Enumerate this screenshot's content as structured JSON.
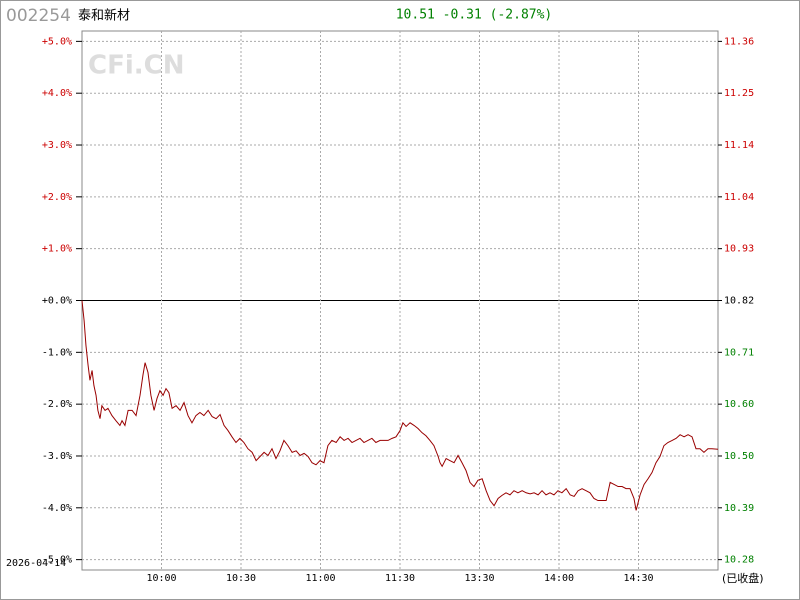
{
  "chart_data": {
    "type": "line",
    "code": "002254",
    "name": "泰和新材",
    "quote": "10.51 -0.31 (-2.87%)",
    "date": "2026-04-14",
    "status": "(已收盘)",
    "watermark": "CFi.CN",
    "color": "#990000",
    "up_color": "#cc0000",
    "down_color": "#008000",
    "grid": true,
    "xlim": [
      0,
      240
    ],
    "xticks": [
      {
        "value": 30,
        "label": "10:00"
      },
      {
        "value": 60,
        "label": "10:30"
      },
      {
        "value": 90,
        "label": "11:00"
      },
      {
        "value": 120,
        "label": "11:30"
      },
      {
        "value": 150,
        "label": "13:30"
      },
      {
        "value": 180,
        "label": "14:00"
      },
      {
        "value": 210,
        "label": "14:30"
      }
    ],
    "ylim": [
      -5.2,
      5.2
    ],
    "yticks": [
      {
        "value": 5,
        "label": "+5.0%"
      },
      {
        "value": 4,
        "label": "+4.0%"
      },
      {
        "value": 3,
        "label": "+3.0%"
      },
      {
        "value": 2,
        "label": "+2.0%"
      },
      {
        "value": 1,
        "label": "+1.0%"
      },
      {
        "value": 0,
        "label": "+0.0%"
      },
      {
        "value": -1,
        "label": "-1.0%"
      },
      {
        "value": -2,
        "label": "-2.0%"
      },
      {
        "value": -3,
        "label": "-3.0%"
      },
      {
        "value": -4,
        "label": "-4.0%"
      },
      {
        "value": -5,
        "label": "-5.0%"
      }
    ],
    "y2lim": [
      10.25736,
      11.38264
    ],
    "y2ticks": [
      {
        "value": 11.361,
        "label": "11.36"
      },
      {
        "value": 11.2528,
        "label": "11.25"
      },
      {
        "value": 11.1446,
        "label": "11.14"
      },
      {
        "value": 11.0364,
        "label": "11.04"
      },
      {
        "value": 10.9282,
        "label": "10.93"
      },
      {
        "value": 10.82,
        "label": "10.82"
      },
      {
        "value": 10.7118,
        "label": "10.71"
      },
      {
        "value": 10.6036,
        "label": "10.60"
      },
      {
        "value": 10.4954,
        "label": "10.50"
      },
      {
        "value": 10.3872,
        "label": "10.39"
      },
      {
        "value": 10.279,
        "label": "10.28"
      }
    ],
    "x": [
      0,
      0.8,
      1.5,
      2.3,
      3,
      3.8,
      4.5,
      5.3,
      6,
      6.8,
      7.5,
      8.7,
      9.8,
      11.3,
      12.8,
      14.3,
      15.1,
      16.2,
      17.4,
      18.9,
      20.4,
      21.9,
      23,
      23.8,
      24.9,
      26,
      27.2,
      28.3,
      29.4,
      30.6,
      31.7,
      32.8,
      34,
      35.5,
      37,
      38.5,
      40,
      41.5,
      43,
      44.5,
      46,
      47.6,
      49.1,
      50.6,
      52.1,
      53.6,
      55.1,
      56.6,
      58.1,
      59.6,
      61.1,
      62.6,
      64.2,
      65.7,
      67.2,
      68.7,
      70.2,
      71.7,
      73.2,
      74.7,
      76.2,
      77.7,
      79.3,
      80.8,
      82.3,
      83.8,
      85.3,
      86.8,
      88.3,
      89.8,
      91.3,
      92.8,
      94.3,
      95.9,
      97.4,
      98.9,
      100.4,
      101.9,
      103.4,
      104.9,
      106.4,
      107.9,
      109.4,
      110.9,
      112.5,
      115.5,
      117,
      118.5,
      120,
      121.1,
      122.3,
      123.8,
      125.3,
      126.8,
      128.3,
      129.8,
      131.3,
      132.8,
      134.4,
      135.1,
      135.9,
      137.4,
      138.9,
      140.4,
      141.9,
      143.4,
      144.9,
      146.4,
      147.9,
      149.4,
      151,
      152.5,
      154,
      155.5,
      157,
      158.5,
      160,
      161.5,
      163,
      164.5,
      166.1,
      167.6,
      169.1,
      170.6,
      172.1,
      173.6,
      175.1,
      176.6,
      178.1,
      179.6,
      181.1,
      182.7,
      184.2,
      185.7,
      187.2,
      188.7,
      190.2,
      191.7,
      193.2,
      194.7,
      197.8,
      199.3,
      200.8,
      202.3,
      203.8,
      205.3,
      206.8,
      208.3,
      209.1,
      210.6,
      212.1,
      213.6,
      215.1,
      216.6,
      218.1,
      219.6,
      221.1,
      222.7,
      224.2,
      225.7,
      227.2,
      228.7,
      230.2,
      231.7,
      233.2,
      234.7,
      236.2,
      237.7,
      240
    ],
    "values": [
      0,
      -0.39,
      -0.87,
      -1.25,
      -1.54,
      -1.35,
      -1.64,
      -1.83,
      -2.12,
      -2.28,
      -2.03,
      -2.12,
      -2.08,
      -2.22,
      -2.32,
      -2.41,
      -2.32,
      -2.41,
      -2.12,
      -2.12,
      -2.22,
      -1.83,
      -1.44,
      -1.2,
      -1.39,
      -1.83,
      -2.12,
      -1.89,
      -1.74,
      -1.83,
      -1.7,
      -1.78,
      -2.08,
      -2.03,
      -2.12,
      -1.97,
      -2.22,
      -2.36,
      -2.22,
      -2.16,
      -2.22,
      -2.12,
      -2.24,
      -2.28,
      -2.2,
      -2.41,
      -2.51,
      -2.63,
      -2.74,
      -2.66,
      -2.74,
      -2.86,
      -2.93,
      -3.09,
      -3.01,
      -2.93,
      -2.99,
      -2.86,
      -3.05,
      -2.9,
      -2.7,
      -2.8,
      -2.93,
      -2.9,
      -2.99,
      -2.95,
      -3.01,
      -3.13,
      -3.17,
      -3.09,
      -3.13,
      -2.8,
      -2.7,
      -2.74,
      -2.63,
      -2.7,
      -2.66,
      -2.74,
      -2.7,
      -2.66,
      -2.74,
      -2.7,
      -2.66,
      -2.74,
      -2.7,
      -2.7,
      -2.66,
      -2.63,
      -2.51,
      -2.36,
      -2.43,
      -2.36,
      -2.41,
      -2.47,
      -2.55,
      -2.61,
      -2.7,
      -2.8,
      -3.01,
      -3.13,
      -3.2,
      -3.05,
      -3.09,
      -3.13,
      -2.99,
      -3.13,
      -3.28,
      -3.51,
      -3.59,
      -3.47,
      -3.44,
      -3.67,
      -3.86,
      -3.96,
      -3.82,
      -3.76,
      -3.71,
      -3.75,
      -3.67,
      -3.71,
      -3.67,
      -3.71,
      -3.73,
      -3.71,
      -3.75,
      -3.67,
      -3.75,
      -3.71,
      -3.75,
      -3.67,
      -3.71,
      -3.63,
      -3.75,
      -3.78,
      -3.67,
      -3.63,
      -3.67,
      -3.71,
      -3.82,
      -3.86,
      -3.86,
      -3.51,
      -3.55,
      -3.59,
      -3.59,
      -3.63,
      -3.63,
      -3.82,
      -4.05,
      -3.75,
      -3.55,
      -3.44,
      -3.32,
      -3.13,
      -3.01,
      -2.8,
      -2.74,
      -2.7,
      -2.66,
      -2.59,
      -2.63,
      -2.59,
      -2.63,
      -2.86,
      -2.86,
      -2.93,
      -2.86,
      -2.86,
      -2.87
    ]
  }
}
